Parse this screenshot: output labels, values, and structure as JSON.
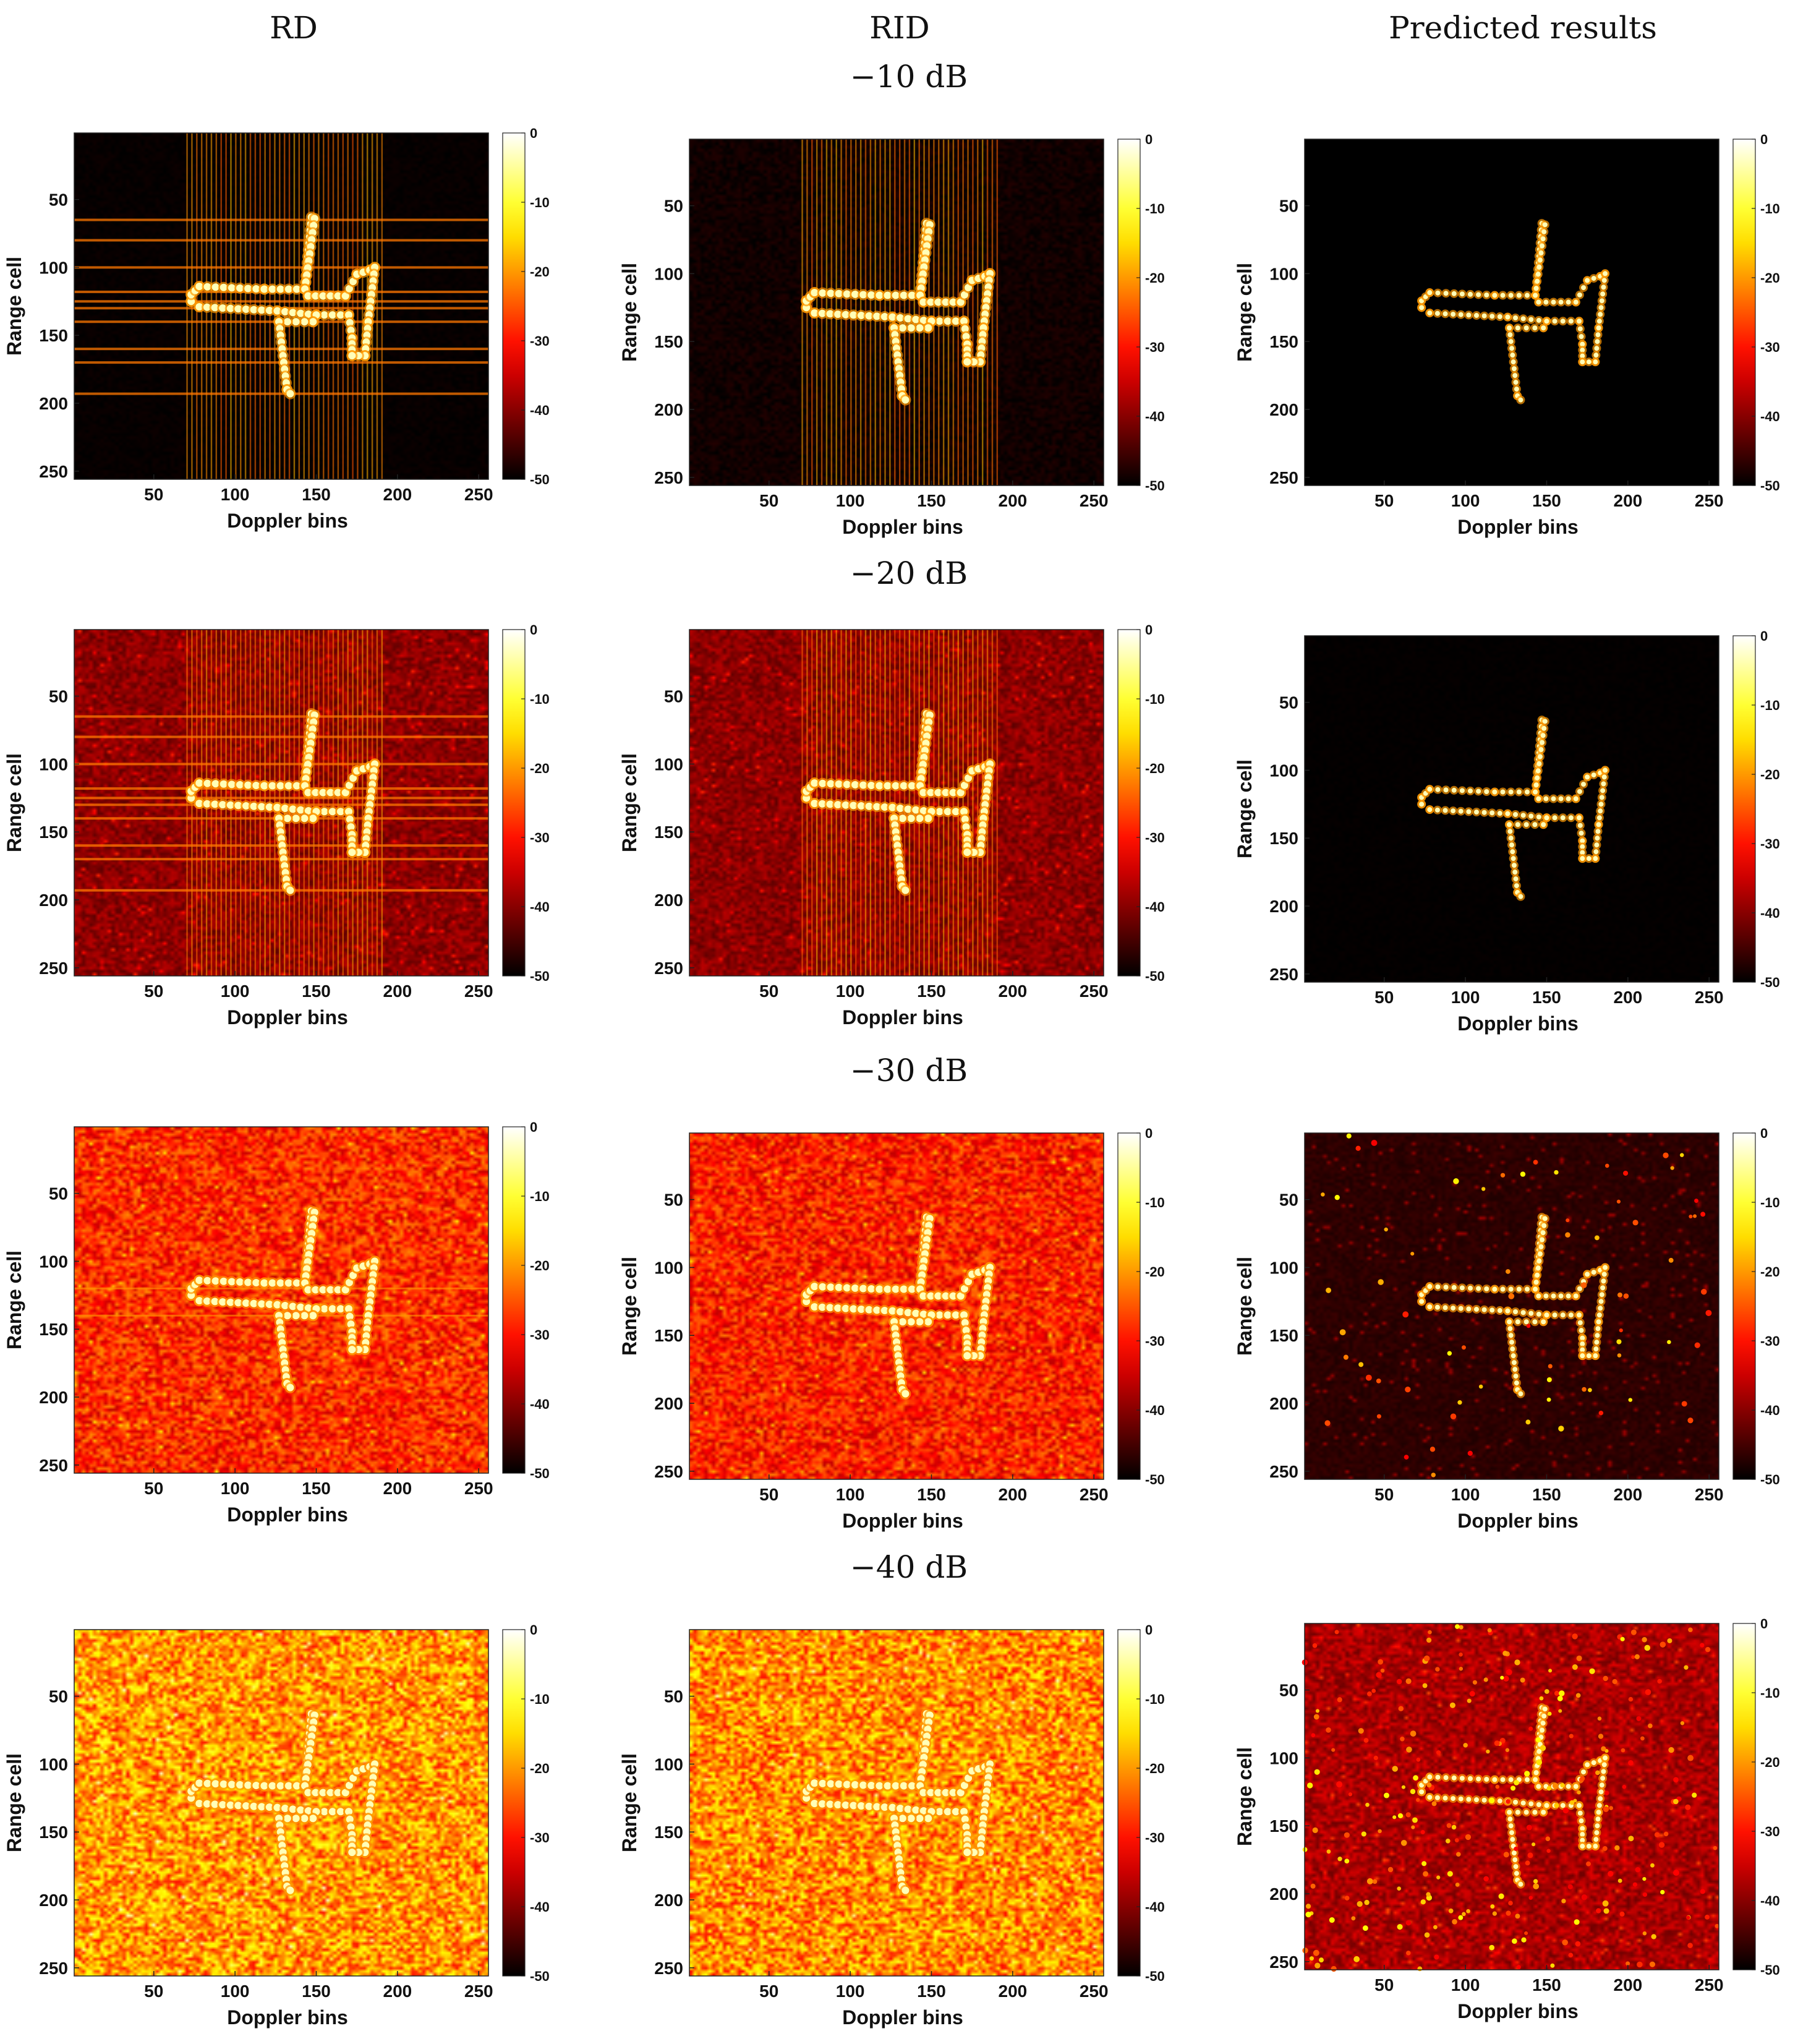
{
  "column_headers": [
    "RD",
    "RID",
    "Predicted results"
  ],
  "row_headers": [
    "−10 dB",
    "−20 dB",
    "−30 dB",
    "−40 dB"
  ],
  "chart_data": [
    {
      "type": "heatmap",
      "id": "rd-10",
      "column": "RD",
      "snr": "−10 dB",
      "noise": 0.02,
      "stripes": "strong",
      "xlabel": "Doppler bins",
      "ylabel": "Range cell",
      "xticks": [
        50,
        100,
        150,
        200,
        250
      ],
      "yticks": [
        50,
        100,
        150,
        200,
        250
      ],
      "xlim": [
        1,
        256
      ],
      "ylim": [
        1,
        256
      ],
      "colorbar": {
        "ticks": [
          0,
          -10,
          -20,
          -30,
          -40,
          -50
        ],
        "range": [
          -50,
          0
        ],
        "colormap": "hot"
      }
    },
    {
      "type": "heatmap",
      "id": "rid-10",
      "column": "RID",
      "snr": "−10 dB",
      "noise": 0.05,
      "stripes": "vertical",
      "xlabel": "Doppler bins",
      "ylabel": "Range cell",
      "xticks": [
        50,
        100,
        150,
        200,
        250
      ],
      "yticks": [
        50,
        100,
        150,
        200,
        250
      ],
      "xlim": [
        1,
        256
      ],
      "ylim": [
        1,
        256
      ],
      "colorbar": {
        "ticks": [
          0,
          -10,
          -20,
          -30,
          -40,
          -50
        ],
        "range": [
          -50,
          0
        ],
        "colormap": "hot"
      }
    },
    {
      "type": "heatmap",
      "id": "pred-10",
      "column": "Predicted results",
      "snr": "−10 dB",
      "noise": 0.0,
      "stripes": "none",
      "xlabel": "Doppler bins",
      "ylabel": "Range cell",
      "xticks": [
        50,
        100,
        150,
        200,
        250
      ],
      "yticks": [
        50,
        100,
        150,
        200,
        250
      ],
      "xlim": [
        1,
        256
      ],
      "ylim": [
        1,
        256
      ],
      "colorbar": {
        "ticks": [
          0,
          -10,
          -20,
          -30,
          -40,
          -50
        ],
        "range": [
          -50,
          0
        ],
        "colormap": "hot"
      }
    },
    {
      "type": "heatmap",
      "id": "rd-20",
      "column": "RD",
      "snr": "−20 dB",
      "noise": 0.25,
      "stripes": "strong",
      "xlabel": "Doppler bins",
      "ylabel": "Range cell",
      "xticks": [
        50,
        100,
        150,
        200,
        250
      ],
      "yticks": [
        50,
        100,
        150,
        200,
        250
      ],
      "xlim": [
        1,
        256
      ],
      "ylim": [
        1,
        256
      ],
      "colorbar": {
        "ticks": [
          0,
          -10,
          -20,
          -30,
          -40,
          -50
        ],
        "range": [
          -50,
          0
        ],
        "colormap": "hot"
      }
    },
    {
      "type": "heatmap",
      "id": "rid-20",
      "column": "RID",
      "snr": "−20 dB",
      "noise": 0.25,
      "stripes": "vertical",
      "xlabel": "Doppler bins",
      "ylabel": "Range cell",
      "xticks": [
        50,
        100,
        150,
        200,
        250
      ],
      "yticks": [
        50,
        100,
        150,
        200,
        250
      ],
      "xlim": [
        1,
        256
      ],
      "ylim": [
        1,
        256
      ],
      "colorbar": {
        "ticks": [
          0,
          -10,
          -20,
          -30,
          -40,
          -50
        ],
        "range": [
          -50,
          0
        ],
        "colormap": "hot"
      }
    },
    {
      "type": "heatmap",
      "id": "pred-20",
      "column": "Predicted results",
      "snr": "−20 dB",
      "noise": 0.01,
      "stripes": "none",
      "xlabel": "Doppler bins",
      "ylabel": "Range cell",
      "xticks": [
        50,
        100,
        150,
        200,
        250
      ],
      "yticks": [
        50,
        100,
        150,
        200,
        250
      ],
      "xlim": [
        1,
        256
      ],
      "ylim": [
        1,
        256
      ],
      "colorbar": {
        "ticks": [
          0,
          -10,
          -20,
          -30,
          -40,
          -50
        ],
        "range": [
          -50,
          0
        ],
        "colormap": "hot"
      }
    },
    {
      "type": "heatmap",
      "id": "rd-30",
      "column": "RD",
      "snr": "−30 dB",
      "noise": 0.52,
      "stripes": "weak",
      "xlabel": "Doppler bins",
      "ylabel": "Range cell",
      "xticks": [
        50,
        100,
        150,
        200,
        250
      ],
      "yticks": [
        50,
        100,
        150,
        200,
        250
      ],
      "xlim": [
        1,
        256
      ],
      "ylim": [
        1,
        256
      ],
      "colorbar": {
        "ticks": [
          0,
          -10,
          -20,
          -30,
          -40,
          -50
        ],
        "range": [
          -50,
          0
        ],
        "colormap": "hot"
      }
    },
    {
      "type": "heatmap",
      "id": "rid-30",
      "column": "RID",
      "snr": "−30 dB",
      "noise": 0.5,
      "stripes": "none",
      "xlabel": "Doppler bins",
      "ylabel": "Range cell",
      "xticks": [
        50,
        100,
        150,
        200,
        250
      ],
      "yticks": [
        50,
        100,
        150,
        200,
        250
      ],
      "xlim": [
        1,
        256
      ],
      "ylim": [
        1,
        256
      ],
      "colorbar": {
        "ticks": [
          0,
          -10,
          -20,
          -30,
          -40,
          -50
        ],
        "range": [
          -50,
          0
        ],
        "colormap": "hot"
      }
    },
    {
      "type": "heatmap",
      "id": "pred-30",
      "column": "Predicted results",
      "snr": "−30 dB",
      "noise": 0.08,
      "stripes": "none",
      "xlabel": "Doppler bins",
      "ylabel": "Range cell",
      "xticks": [
        50,
        100,
        150,
        200,
        250
      ],
      "yticks": [
        50,
        100,
        150,
        200,
        250
      ],
      "xlim": [
        1,
        256
      ],
      "ylim": [
        1,
        256
      ],
      "colorbar": {
        "ticks": [
          0,
          -10,
          -20,
          -30,
          -40,
          -50
        ],
        "range": [
          -50,
          0
        ],
        "colormap": "hot"
      }
    },
    {
      "type": "heatmap",
      "id": "rd-40",
      "column": "RD",
      "snr": "−40 dB",
      "noise": 0.72,
      "stripes": "none",
      "xlabel": "Doppler bins",
      "ylabel": "Range cell",
      "xticks": [
        50,
        100,
        150,
        200,
        250
      ],
      "yticks": [
        50,
        100,
        150,
        200,
        250
      ],
      "xlim": [
        1,
        256
      ],
      "ylim": [
        1,
        256
      ],
      "colorbar": {
        "ticks": [
          0,
          -10,
          -20,
          -30,
          -40,
          -50
        ],
        "range": [
          -50,
          0
        ],
        "colormap": "hot"
      }
    },
    {
      "type": "heatmap",
      "id": "rid-40",
      "column": "RID",
      "snr": "−40 dB",
      "noise": 0.7,
      "stripes": "none",
      "xlabel": "Doppler bins",
      "ylabel": "Range cell",
      "xticks": [
        50,
        100,
        150,
        200,
        250
      ],
      "yticks": [
        50,
        100,
        150,
        200,
        250
      ],
      "xlim": [
        1,
        256
      ],
      "ylim": [
        1,
        256
      ],
      "colorbar": {
        "ticks": [
          0,
          -10,
          -20,
          -30,
          -40,
          -50
        ],
        "range": [
          -50,
          0
        ],
        "colormap": "hot"
      }
    },
    {
      "type": "heatmap",
      "id": "pred-40",
      "column": "Predicted results",
      "snr": "−40 dB",
      "noise": 0.3,
      "stripes": "none",
      "xlabel": "Doppler bins",
      "ylabel": "Range cell",
      "xticks": [
        50,
        100,
        150,
        200,
        250
      ],
      "yticks": [
        50,
        100,
        150,
        200,
        250
      ],
      "xlim": [
        1,
        256
      ],
      "ylim": [
        1,
        256
      ],
      "colorbar": {
        "ticks": [
          0,
          -10,
          -20,
          -30,
          -40,
          -50
        ],
        "range": [
          -50,
          0
        ],
        "colormap": "hot"
      }
    }
  ],
  "target_shape": {
    "name": "aircraft",
    "segments": [
      [
        [
          73,
          120
        ],
        [
          73,
          125
        ],
        [
          78,
          129
        ]
      ],
      [
        [
          73,
          120
        ],
        [
          78,
          114
        ],
        [
          118,
          116
        ],
        [
          143,
          116
        ]
      ],
      [
        [
          143,
          116
        ],
        [
          147,
          63
        ]
      ],
      [
        [
          149,
          64
        ],
        [
          143,
          116
        ],
        [
          145,
          121
        ],
        [
          168,
          121
        ],
        [
          175,
          105
        ],
        [
          183,
          102
        ],
        [
          186,
          100
        ]
      ],
      [
        [
          78,
          129
        ],
        [
          126,
          132
        ],
        [
          150,
          135
        ],
        [
          170,
          135
        ],
        [
          172,
          152
        ],
        [
          172,
          165
        ]
      ],
      [
        [
          186,
          100
        ],
        [
          182,
          140
        ],
        [
          180,
          165
        ],
        [
          172,
          165
        ]
      ],
      [
        [
          150,
          135
        ],
        [
          148,
          140
        ],
        [
          127,
          140
        ],
        [
          132,
          190
        ],
        [
          134,
          193
        ]
      ]
    ]
  }
}
